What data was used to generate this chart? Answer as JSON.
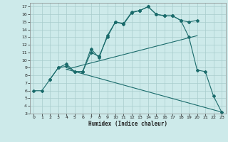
{
  "xlabel": "Humidex (Indice chaleur)",
  "bg_color": "#cdeaea",
  "grid_color": "#a8cccc",
  "line_color": "#1a6b6b",
  "xlim": [
    -0.5,
    23.5
  ],
  "ylim": [
    3,
    17.5
  ],
  "xticks": [
    0,
    1,
    2,
    3,
    4,
    5,
    6,
    7,
    8,
    9,
    10,
    11,
    12,
    13,
    14,
    15,
    16,
    17,
    18,
    19,
    20,
    21,
    22,
    23
  ],
  "yticks": [
    3,
    4,
    5,
    6,
    7,
    8,
    9,
    10,
    11,
    12,
    13,
    14,
    15,
    16,
    17
  ],
  "line1_x": [
    0,
    1,
    2,
    3,
    4,
    5,
    6,
    7,
    8,
    9,
    10,
    11,
    12,
    13,
    14,
    15,
    16,
    17,
    18,
    19,
    20
  ],
  "line1_y": [
    6,
    6,
    7.5,
    9,
    9.5,
    8.5,
    8.5,
    11,
    10.5,
    13,
    15,
    14.8,
    16.3,
    16.5,
    17,
    16,
    15.8,
    15.8,
    15.2,
    15,
    15.2
  ],
  "line2_x": [
    2,
    3,
    4,
    5,
    6,
    7,
    8,
    9,
    10,
    11,
    12,
    13,
    14,
    15,
    16,
    17,
    18,
    19,
    20,
    21,
    22,
    23
  ],
  "line2_y": [
    7.5,
    9,
    9.2,
    8.5,
    8.5,
    11.5,
    10.3,
    13.2,
    15,
    14.7,
    16.2,
    16.5,
    17,
    16,
    15.8,
    15.8,
    15.2,
    13,
    8.7,
    8.5,
    5.3,
    3.2
  ],
  "line3_x": [
    4,
    20
  ],
  "line3_y": [
    8.8,
    13.2
  ],
  "line4_x": [
    4,
    23
  ],
  "line4_y": [
    8.8,
    3.2
  ]
}
